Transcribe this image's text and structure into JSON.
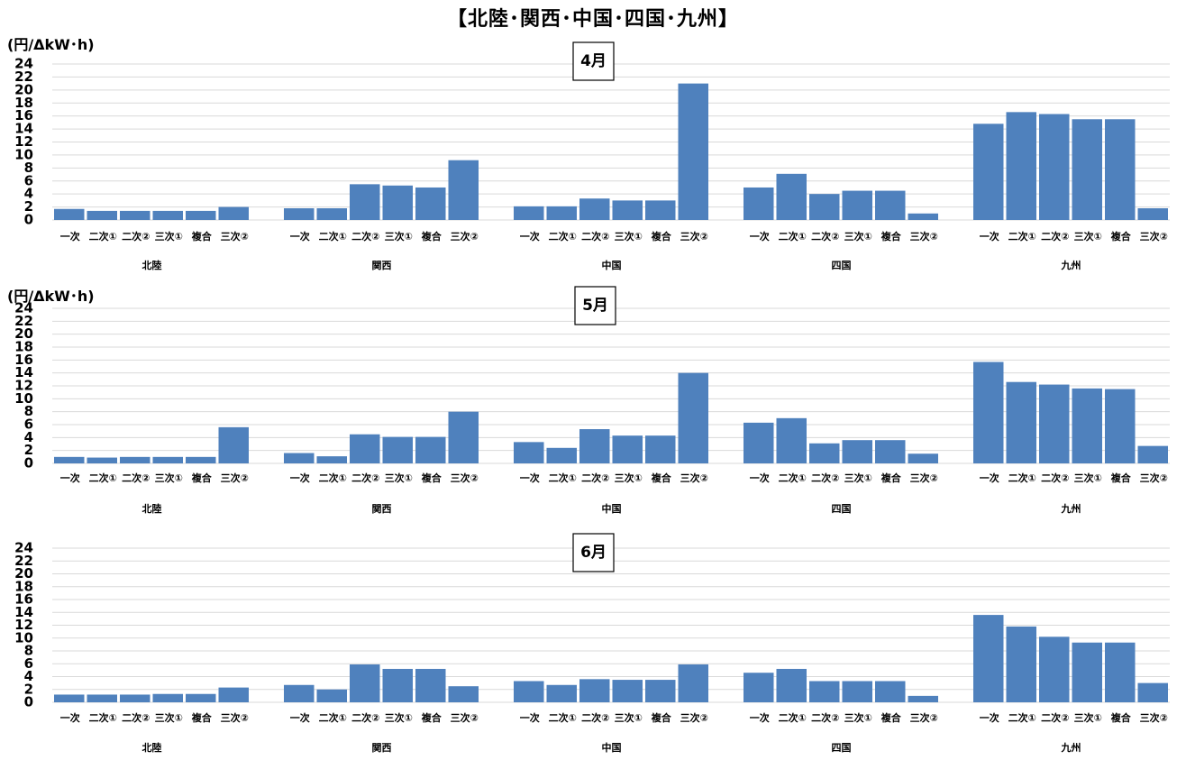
{
  "title": "【北陸･関西･中国･四国･九州】",
  "chart_data": [
    {
      "type": "bar",
      "title": "4月",
      "ylabel": "(円/ΔkW･h)",
      "ylim": [
        0,
        24
      ],
      "yticks": [
        0,
        2,
        4,
        6,
        8,
        10,
        12,
        14,
        16,
        18,
        20,
        22,
        24
      ],
      "grid": true,
      "categories": [
        "一次",
        "二次①",
        "二次②",
        "三次①",
        "複合",
        "三次②"
      ],
      "groups": [
        {
          "name": "北陸",
          "values": [
            1.7,
            1.4,
            1.4,
            1.4,
            1.4,
            2.0
          ]
        },
        {
          "name": "関西",
          "values": [
            1.8,
            1.8,
            5.5,
            5.3,
            5.0,
            9.2
          ]
        },
        {
          "name": "中国",
          "values": [
            2.1,
            2.1,
            3.3,
            3.0,
            3.0,
            21.0
          ]
        },
        {
          "name": "四国",
          "values": [
            5.0,
            7.1,
            4.0,
            4.5,
            4.5,
            1.0
          ]
        },
        {
          "name": "九州",
          "values": [
            14.8,
            16.6,
            16.3,
            15.5,
            15.5,
            1.8
          ]
        }
      ]
    },
    {
      "type": "bar",
      "title": "5月",
      "ylabel": "(円/ΔkW･h)",
      "ylim": [
        0,
        24
      ],
      "yticks": [
        0,
        2,
        4,
        6,
        8,
        10,
        12,
        14,
        16,
        18,
        20,
        22,
        24
      ],
      "grid": true,
      "categories": [
        "一次",
        "二次①",
        "二次②",
        "三次①",
        "複合",
        "三次②"
      ],
      "groups": [
        {
          "name": "北陸",
          "values": [
            1.0,
            0.9,
            1.0,
            1.0,
            1.0,
            5.6
          ]
        },
        {
          "name": "関西",
          "values": [
            1.6,
            1.1,
            4.5,
            4.1,
            4.1,
            8.0
          ]
        },
        {
          "name": "中国",
          "values": [
            3.3,
            2.4,
            5.3,
            4.3,
            4.3,
            14.0
          ]
        },
        {
          "name": "四国",
          "values": [
            6.3,
            7.0,
            3.1,
            3.6,
            3.6,
            1.5
          ]
        },
        {
          "name": "九州",
          "values": [
            15.7,
            12.6,
            12.2,
            11.6,
            11.5,
            2.7
          ]
        }
      ]
    },
    {
      "type": "bar",
      "title": "6月",
      "ylabel": "",
      "ylim": [
        0,
        24
      ],
      "yticks": [
        0,
        2,
        4,
        6,
        8,
        10,
        12,
        14,
        16,
        18,
        20,
        22,
        24
      ],
      "grid": true,
      "categories": [
        "一次",
        "二次①",
        "二次②",
        "三次①",
        "複合",
        "三次②"
      ],
      "groups": [
        {
          "name": "北陸",
          "values": [
            1.2,
            1.2,
            1.2,
            1.3,
            1.3,
            2.3
          ]
        },
        {
          "name": "関西",
          "values": [
            2.7,
            2.0,
            5.9,
            5.2,
            5.2,
            2.5
          ]
        },
        {
          "name": "中国",
          "values": [
            3.3,
            2.7,
            3.6,
            3.5,
            3.5,
            5.9
          ]
        },
        {
          "name": "四国",
          "values": [
            4.6,
            5.2,
            3.3,
            3.3,
            3.3,
            1.0
          ]
        },
        {
          "name": "九州",
          "values": [
            13.6,
            11.8,
            10.2,
            9.3,
            9.3,
            3.0
          ]
        }
      ]
    }
  ]
}
